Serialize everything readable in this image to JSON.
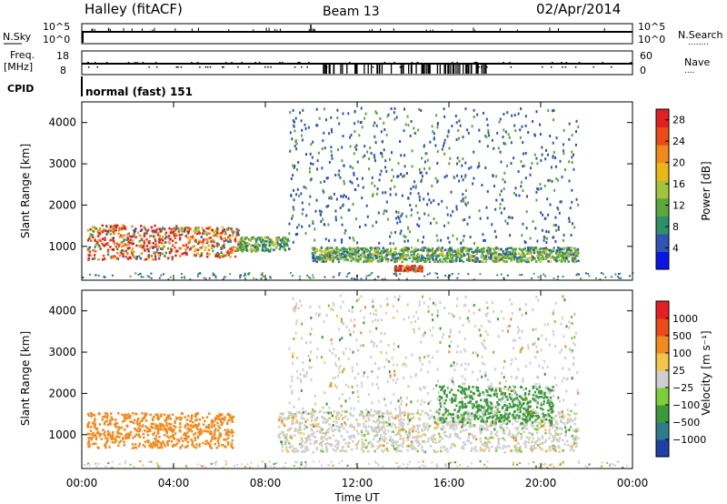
{
  "header": {
    "station": "Halley (fitACF)",
    "beam": "Beam 13",
    "date": "02/Apr/2014"
  },
  "strips": {
    "nsky": {
      "label": "N.Sky",
      "left_ticks": [
        "10^5",
        "10^0"
      ],
      "right_ticks": [
        "10^5",
        "10^0"
      ],
      "right_label": "N.Search",
      "right_dots": "........"
    },
    "freq": {
      "label_top": "Freq.",
      "label_unit": "[MHz]",
      "left_ticks": [
        "18",
        "8"
      ],
      "right_ticks": [
        "60",
        "0"
      ],
      "right_label": "Nave",
      "right_dots": "...."
    },
    "cpid": {
      "label": "CPID",
      "value": "normal (fast) 151"
    }
  },
  "chart_data": [
    {
      "type": "heatmap",
      "title": "",
      "xlabel": "",
      "ylabel": "Slant Range [km]",
      "x_ticks": [
        "00:00",
        "04:00",
        "08:00",
        "12:00",
        "16:00",
        "20:00",
        "00:00"
      ],
      "y_ticks": [
        "1000",
        "2000",
        "3000",
        "4000"
      ],
      "xlim_hours": [
        0,
        24
      ],
      "ylim_km": [
        180,
        4500
      ],
      "colorbar": {
        "label": "Power [dB]",
        "ticks": [
          "4",
          "8",
          "12",
          "16",
          "20",
          "24",
          "28"
        ],
        "range": [
          0,
          30
        ],
        "colors": [
          "#0a14e6",
          "#2f55b4",
          "#2f8f6a",
          "#5aa83a",
          "#a0c43a",
          "#e8b814",
          "#f08a16",
          "#ee4a18",
          "#e51f1f"
        ]
      },
      "features": [
        {
          "name": "evening-E-region",
          "t0": 0.2,
          "t1": 4.2,
          "r0": 700,
          "r1": 1550,
          "level": 26
        },
        {
          "name": "late-band",
          "t0": 4.2,
          "t1": 6.8,
          "r0": 760,
          "r1": 1500,
          "level": 24
        },
        {
          "name": "drift-band",
          "t0": 6.8,
          "t1": 9.0,
          "r0": 900,
          "r1": 1250,
          "level": 12
        },
        {
          "name": "morning-band",
          "t0": 10.0,
          "t1": 21.6,
          "r0": 650,
          "r1": 1000,
          "level": 12
        },
        {
          "name": "patch-14UT",
          "t0": 13.6,
          "t1": 14.8,
          "r0": 420,
          "r1": 560,
          "level": 26
        }
      ]
    },
    {
      "type": "heatmap",
      "title": "",
      "xlabel": "Time UT",
      "ylabel": "Slant Range [km]",
      "x_ticks": [
        "00:00",
        "04:00",
        "08:00",
        "12:00",
        "16:00",
        "20:00",
        "00:00"
      ],
      "y_ticks": [
        "1000",
        "2000",
        "3000",
        "4000"
      ],
      "xlim_hours": [
        0,
        24
      ],
      "ylim_km": [
        180,
        4500
      ],
      "colorbar": {
        "label": "Velocity [m s⁻¹]",
        "ticks": [
          "1000",
          "500",
          "100",
          "25",
          "−25",
          "−100",
          "−500",
          "−1000"
        ],
        "colors": [
          "#1e3ea8",
          "#2f7a8c",
          "#3a9a3a",
          "#7ccf38",
          "#cfcfcf",
          "#f3c64a",
          "#f28a1e",
          "#ee4a18",
          "#e51f1f"
        ]
      },
      "features": [
        {
          "name": "negative-flow",
          "t0": 0.2,
          "t1": 6.6,
          "r0": 700,
          "r1": 1550,
          "level": -150
        },
        {
          "name": "ground-scatter",
          "t0": 8.5,
          "t1": 21.6,
          "r0": 600,
          "r1": 1600,
          "level": 0
        },
        {
          "name": "positive-flow",
          "t0": 15.5,
          "t1": 20.5,
          "r0": 1300,
          "r1": 2200,
          "level": 120
        }
      ]
    }
  ]
}
